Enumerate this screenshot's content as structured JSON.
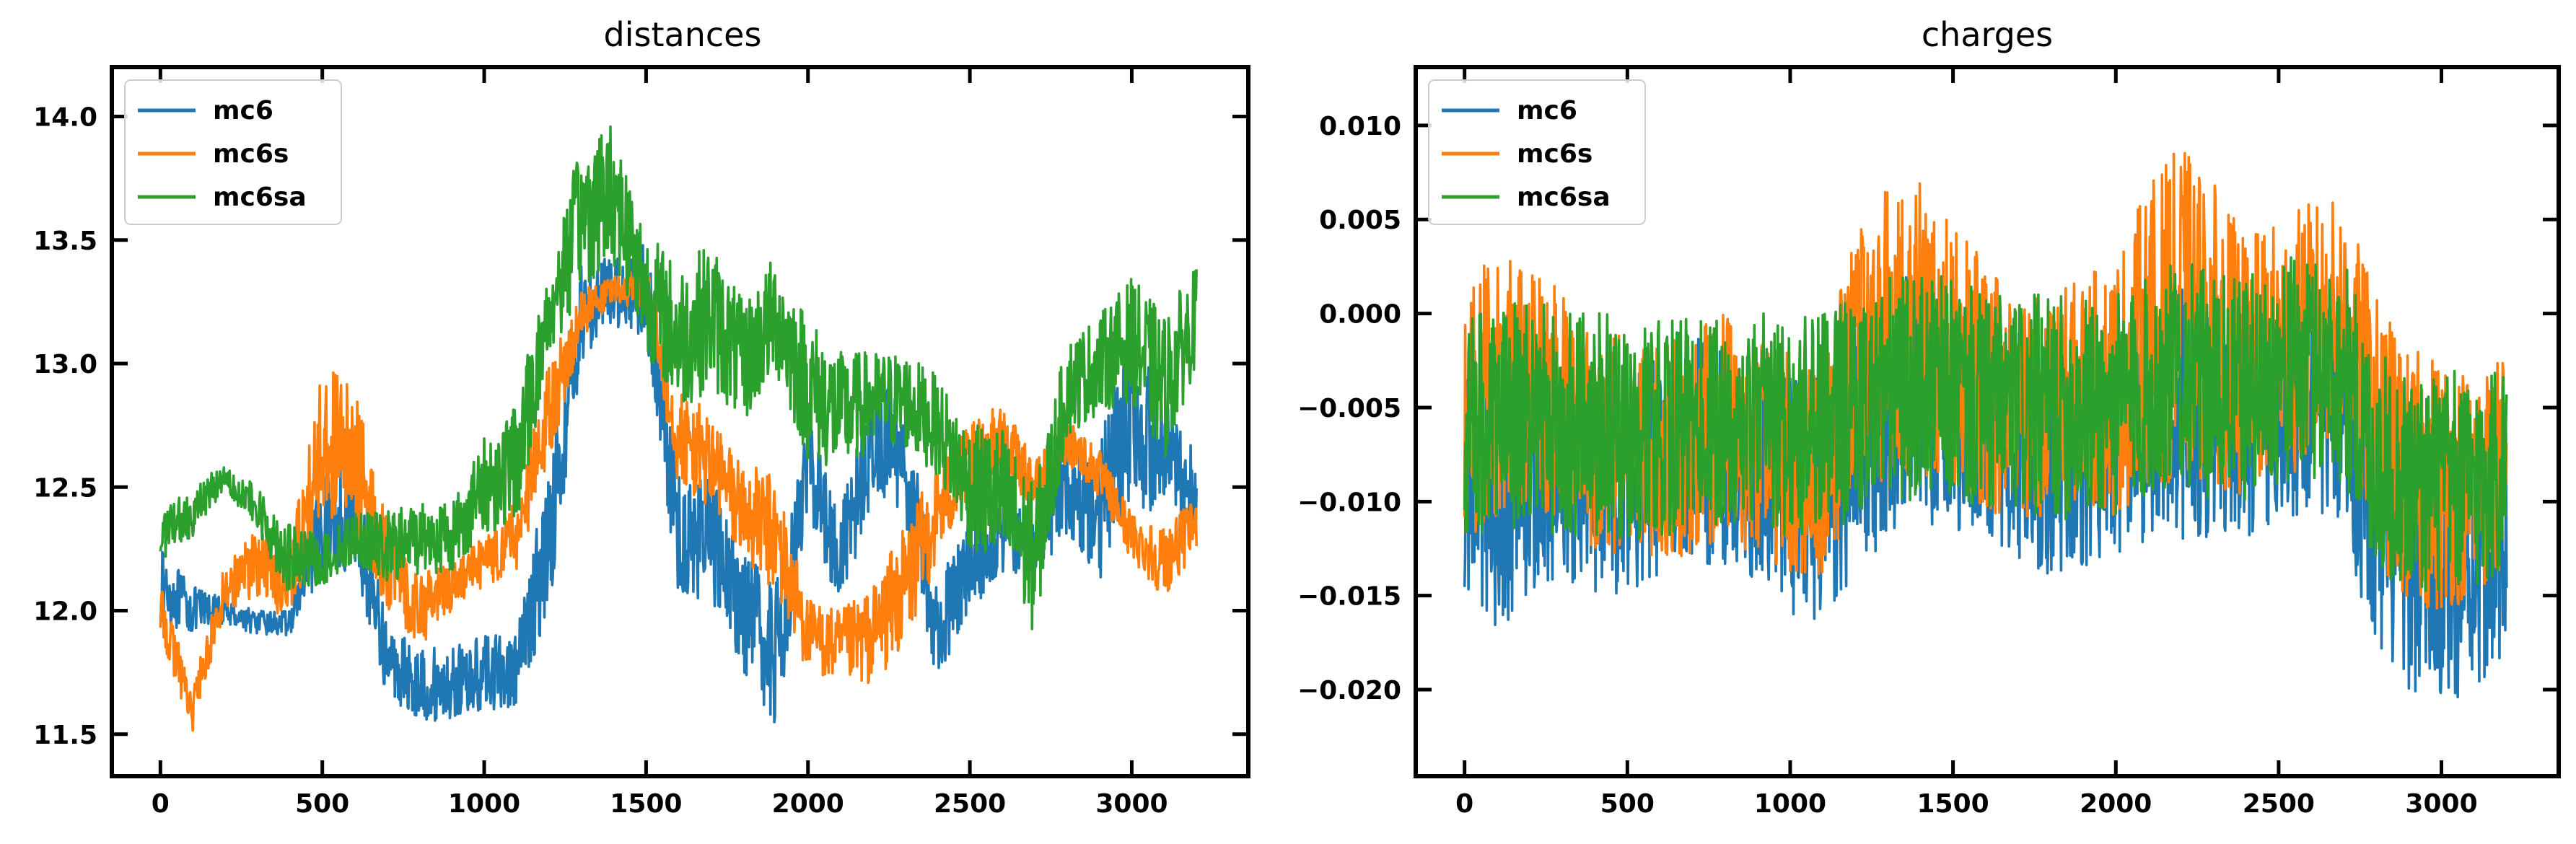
{
  "chart_data": [
    {
      "type": "line",
      "title": "distances",
      "xlabel": "",
      "ylabel": "",
      "xlim": [
        -150,
        3360
      ],
      "ylim": [
        11.33,
        14.2
      ],
      "x_ticks": [
        0,
        500,
        1000,
        1500,
        2000,
        2500,
        3000
      ],
      "y_ticks": [
        11.5,
        12.0,
        12.5,
        13.0,
        13.5,
        14.0
      ],
      "x_tick_labels": [
        "0",
        "500",
        "1000",
        "1500",
        "2000",
        "2500",
        "3000"
      ],
      "y_tick_labels": [
        "11.5",
        "12.0",
        "12.5",
        "13.0",
        "13.5",
        "14.0"
      ],
      "grid": false,
      "legend_position": "top-left",
      "series": [
        {
          "name": "mc6",
          "color": "#1f77b4",
          "x": [
            0,
            100,
            200,
            300,
            400,
            500,
            600,
            700,
            800,
            900,
            1000,
            1100,
            1200,
            1300,
            1400,
            1500,
            1600,
            1700,
            1800,
            1900,
            2000,
            2100,
            2200,
            2300,
            2400,
            2500,
            2600,
            2700,
            2800,
            2900,
            3000,
            3100,
            3200
          ],
          "values": [
            12.1,
            12.0,
            12.0,
            11.95,
            11.95,
            12.35,
            12.4,
            11.8,
            11.7,
            11.7,
            11.75,
            11.75,
            12.3,
            13.2,
            13.3,
            13.3,
            12.3,
            12.3,
            12.0,
            11.8,
            12.6,
            12.2,
            12.7,
            12.6,
            11.9,
            12.2,
            12.3,
            12.3,
            12.5,
            12.4,
            12.8,
            12.6,
            12.5
          ],
          "amplitude": [
            0.15,
            0.1,
            0.05,
            0.05,
            0.05,
            0.2,
            0.25,
            0.15,
            0.15,
            0.15,
            0.15,
            0.15,
            0.3,
            0.2,
            0.15,
            0.2,
            0.25,
            0.25,
            0.25,
            0.3,
            0.2,
            0.2,
            0.25,
            0.25,
            0.2,
            0.2,
            0.15,
            0.15,
            0.2,
            0.3,
            0.35,
            0.25,
            0.15
          ]
        },
        {
          "name": "mc6s",
          "color": "#ff7f0e",
          "x": [
            0,
            100,
            200,
            300,
            400,
            500,
            600,
            700,
            800,
            900,
            1000,
            1100,
            1200,
            1300,
            1400,
            1500,
            1600,
            1700,
            1800,
            1900,
            2000,
            2100,
            2200,
            2300,
            2400,
            2500,
            2600,
            2700,
            2800,
            2900,
            3000,
            3100,
            3200
          ],
          "values": [
            12.0,
            11.6,
            12.1,
            12.2,
            12.1,
            12.7,
            12.6,
            12.2,
            12.0,
            12.1,
            12.2,
            12.3,
            12.8,
            13.2,
            13.3,
            13.3,
            12.7,
            12.6,
            12.4,
            12.3,
            11.9,
            11.85,
            11.9,
            12.1,
            12.4,
            12.6,
            12.7,
            12.5,
            12.7,
            12.55,
            12.3,
            12.2,
            12.35
          ],
          "amplitude": [
            0.1,
            0.1,
            0.1,
            0.15,
            0.15,
            0.3,
            0.3,
            0.2,
            0.15,
            0.1,
            0.1,
            0.15,
            0.2,
            0.1,
            0.05,
            0.1,
            0.2,
            0.2,
            0.2,
            0.25,
            0.15,
            0.15,
            0.2,
            0.25,
            0.2,
            0.15,
            0.15,
            0.1,
            0.1,
            0.1,
            0.1,
            0.15,
            0.1
          ]
        },
        {
          "name": "mc6sa",
          "color": "#2ca02c",
          "x": [
            0,
            100,
            200,
            300,
            400,
            500,
            600,
            700,
            800,
            900,
            1000,
            1100,
            1200,
            1300,
            1400,
            1500,
            1600,
            1700,
            1800,
            1900,
            2000,
            2100,
            2200,
            2300,
            2400,
            2500,
            2600,
            2700,
            2800,
            2900,
            3000,
            3100,
            3200
          ],
          "values": [
            12.3,
            12.4,
            12.55,
            12.4,
            12.2,
            12.2,
            12.3,
            12.25,
            12.3,
            12.3,
            12.5,
            12.6,
            13.2,
            13.6,
            13.7,
            13.3,
            13.1,
            13.2,
            13.0,
            13.2,
            12.9,
            12.8,
            12.85,
            12.85,
            12.75,
            12.5,
            12.45,
            12.2,
            12.9,
            13.0,
            13.1,
            12.9,
            13.2
          ],
          "amplitude": [
            0.1,
            0.1,
            0.05,
            0.1,
            0.15,
            0.1,
            0.1,
            0.15,
            0.15,
            0.15,
            0.2,
            0.25,
            0.2,
            0.3,
            0.3,
            0.25,
            0.3,
            0.3,
            0.25,
            0.25,
            0.3,
            0.25,
            0.2,
            0.2,
            0.2,
            0.25,
            0.3,
            0.3,
            0.2,
            0.2,
            0.25,
            0.3,
            0.2
          ]
        }
      ]
    },
    {
      "type": "line",
      "title": "charges",
      "xlabel": "",
      "ylabel": "",
      "xlim": [
        -150,
        3360
      ],
      "ylim": [
        -0.0246,
        0.0131
      ],
      "x_ticks": [
        0,
        500,
        1000,
        1500,
        2000,
        2500,
        3000
      ],
      "y_ticks": [
        0.01,
        0.005,
        0.0,
        -0.005,
        -0.01,
        -0.015,
        -0.02
      ],
      "x_tick_labels": [
        "0",
        "500",
        "1000",
        "1500",
        "2000",
        "2500",
        "3000"
      ],
      "y_tick_labels": [
        "0.010",
        "0.005",
        "0.000",
        "−0.005",
        "−0.010",
        "−0.015",
        "−0.020"
      ],
      "grid": false,
      "legend_position": "top-left",
      "series": [
        {
          "name": "mc6",
          "color": "#1f77b4",
          "x": [
            0,
            100,
            200,
            300,
            400,
            500,
            600,
            700,
            800,
            900,
            1000,
            1100,
            1200,
            1300,
            1400,
            1500,
            1600,
            1700,
            1800,
            1900,
            2000,
            2100,
            2200,
            2300,
            2400,
            2500,
            2600,
            2700,
            2800,
            2900,
            3000,
            3100,
            3200
          ],
          "values": [
            -0.009,
            -0.01,
            -0.009,
            -0.008,
            -0.009,
            -0.009,
            -0.008,
            -0.007,
            -0.008,
            -0.008,
            -0.009,
            -0.01,
            -0.007,
            -0.005,
            -0.005,
            -0.005,
            -0.006,
            -0.007,
            -0.008,
            -0.008,
            -0.007,
            -0.006,
            -0.005,
            -0.006,
            -0.006,
            -0.005,
            -0.005,
            -0.005,
            -0.012,
            -0.013,
            -0.014,
            -0.013,
            -0.012
          ],
          "amplitude": [
            0.006,
            0.007,
            0.006,
            0.006,
            0.006,
            0.006,
            0.006,
            0.006,
            0.006,
            0.006,
            0.007,
            0.007,
            0.007,
            0.007,
            0.007,
            0.007,
            0.006,
            0.006,
            0.006,
            0.006,
            0.006,
            0.006,
            0.007,
            0.006,
            0.006,
            0.006,
            0.006,
            0.006,
            0.007,
            0.007,
            0.007,
            0.007,
            0.006
          ]
        },
        {
          "name": "mc6s",
          "color": "#ff7f0e",
          "x": [
            0,
            100,
            200,
            300,
            400,
            500,
            600,
            700,
            800,
            900,
            1000,
            1100,
            1200,
            1300,
            1400,
            1500,
            1600,
            1700,
            1800,
            1900,
            2000,
            2100,
            2200,
            2300,
            2400,
            2500,
            2600,
            2700,
            2800,
            2900,
            3000,
            3100,
            3200
          ],
          "values": [
            -0.005,
            -0.004,
            -0.004,
            -0.005,
            -0.007,
            -0.007,
            -0.007,
            -0.007,
            -0.006,
            -0.007,
            -0.008,
            -0.008,
            -0.003,
            -0.001,
            -0.001,
            -0.002,
            -0.004,
            -0.005,
            -0.005,
            -0.004,
            -0.004,
            -0.001,
            0.0,
            -0.001,
            -0.003,
            -0.002,
            -0.001,
            0.0,
            -0.006,
            -0.009,
            -0.009,
            -0.009,
            -0.008
          ],
          "amplitude": [
            0.007,
            0.007,
            0.007,
            0.006,
            0.006,
            0.006,
            0.006,
            0.006,
            0.006,
            0.006,
            0.006,
            0.006,
            0.007,
            0.008,
            0.008,
            0.007,
            0.007,
            0.006,
            0.006,
            0.006,
            0.007,
            0.008,
            0.009,
            0.008,
            0.007,
            0.007,
            0.007,
            0.006,
            0.007,
            0.007,
            0.007,
            0.006,
            0.006
          ]
        },
        {
          "name": "mc6sa",
          "color": "#2ca02c",
          "x": [
            0,
            100,
            200,
            300,
            400,
            500,
            600,
            700,
            800,
            900,
            1000,
            1100,
            1200,
            1300,
            1400,
            1500,
            1600,
            1700,
            1800,
            1900,
            2000,
            2100,
            2200,
            2300,
            2400,
            2500,
            2600,
            2700,
            2800,
            2900,
            3000,
            3100,
            3200
          ],
          "values": [
            -0.006,
            -0.006,
            -0.005,
            -0.006,
            -0.006,
            -0.006,
            -0.006,
            -0.006,
            -0.006,
            -0.006,
            -0.006,
            -0.006,
            -0.005,
            -0.004,
            -0.004,
            -0.004,
            -0.005,
            -0.005,
            -0.005,
            -0.005,
            -0.005,
            -0.004,
            -0.003,
            -0.004,
            -0.004,
            -0.003,
            -0.003,
            -0.003,
            -0.008,
            -0.009,
            -0.009,
            -0.009,
            -0.008
          ],
          "amplitude": [
            0.006,
            0.006,
            0.006,
            0.006,
            0.006,
            0.006,
            0.006,
            0.006,
            0.006,
            0.006,
            0.006,
            0.006,
            0.006,
            0.006,
            0.006,
            0.006,
            0.006,
            0.006,
            0.006,
            0.006,
            0.006,
            0.006,
            0.006,
            0.006,
            0.006,
            0.006,
            0.006,
            0.006,
            0.006,
            0.006,
            0.006,
            0.006,
            0.006
          ]
        }
      ]
    }
  ]
}
